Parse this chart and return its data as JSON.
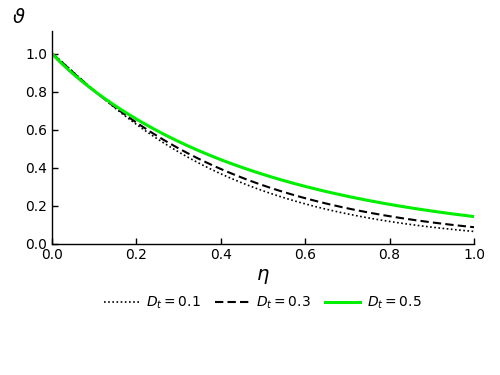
{
  "title": "",
  "xlabel": "η",
  "ylabel": "ϑ",
  "xlim": [
    0.0,
    1.0
  ],
  "ylim": [
    0.0,
    1.12
  ],
  "yticks": [
    0.0,
    0.2,
    0.4,
    0.6,
    0.8,
    1.0
  ],
  "xticks": [
    0.0,
    0.2,
    0.4,
    0.6,
    0.8,
    1.0
  ],
  "legend_entries": [
    "$D_t = 0.1$",
    "$D_t = 0.3$",
    "$D_t = 0.5$"
  ],
  "line_colors": [
    "#000000",
    "#000000",
    "#00ee00"
  ],
  "background_color": "#ffffff",
  "figsize": [
    5.0,
    3.75
  ],
  "dpi": 100,
  "params_01": [
    0.05,
    2.8,
    1.1
  ],
  "params_03": [
    0.05,
    2.5,
    1.05
  ],
  "params_05": [
    0.05,
    2.0,
    0.95
  ]
}
